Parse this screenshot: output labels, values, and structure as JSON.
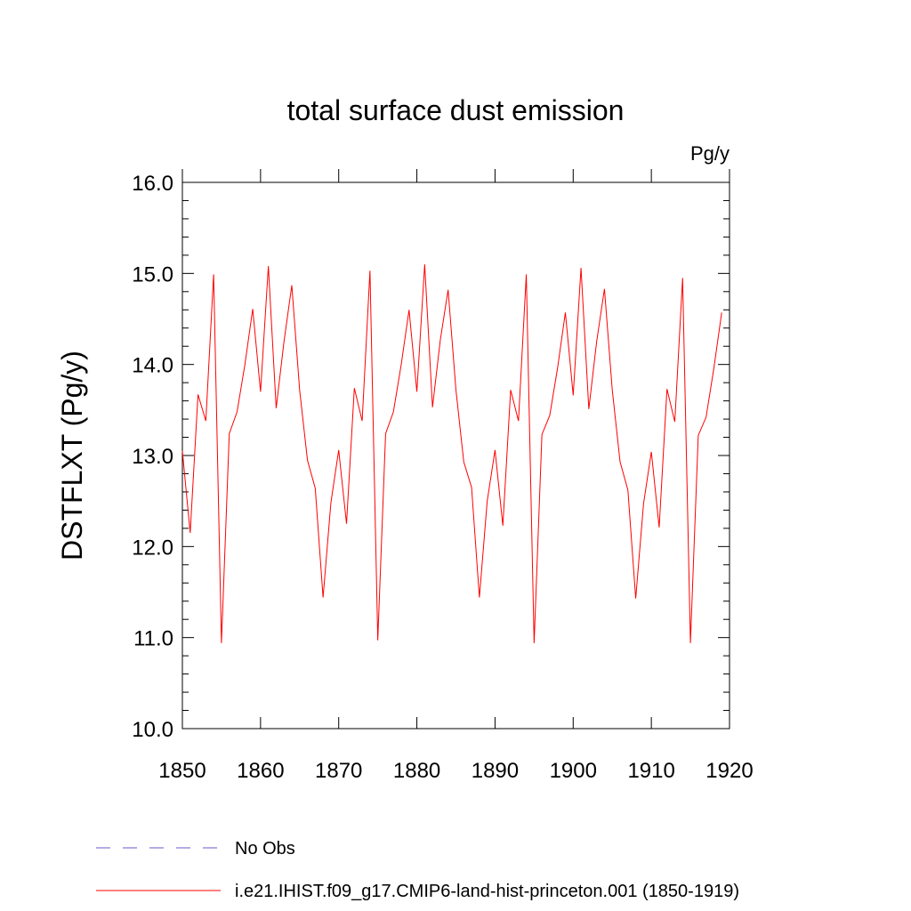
{
  "chart_data": {
    "type": "line",
    "title": "total surface dust emission",
    "units_label": "Pg/y",
    "ylabel": "DSTFLXT  (Pg/y)",
    "xlabel": "",
    "xlim": [
      1850,
      1920
    ],
    "ylim": [
      10.0,
      16.0
    ],
    "x_ticks": [
      1850,
      1860,
      1870,
      1880,
      1890,
      1900,
      1910,
      1920
    ],
    "x_tick_labels": [
      "1850",
      "1860",
      "1870",
      "1880",
      "1890",
      "1900",
      "1910",
      "1920"
    ],
    "y_ticks": [
      10.0,
      11.0,
      12.0,
      13.0,
      14.0,
      15.0,
      16.0
    ],
    "y_tick_labels": [
      "10.0",
      "11.0",
      "12.0",
      "13.0",
      "14.0",
      "15.0",
      "16.0"
    ],
    "grid": false,
    "legend_position": "bottom-left",
    "series": [
      {
        "name": "i.e21.IHIST.f09_g17.CMIP6-land-hist-princeton.001 (1850-1919)",
        "color": "#ff0000",
        "style": "solid",
        "x": [
          1850,
          1851,
          1852,
          1853,
          1854,
          1855,
          1856,
          1857,
          1858,
          1859,
          1860,
          1861,
          1862,
          1863,
          1864,
          1865,
          1866,
          1867,
          1868,
          1869,
          1870,
          1871,
          1872,
          1873,
          1874,
          1875,
          1876,
          1877,
          1878,
          1879,
          1880,
          1881,
          1882,
          1883,
          1884,
          1885,
          1886,
          1887,
          1888,
          1889,
          1890,
          1891,
          1892,
          1893,
          1894,
          1895,
          1896,
          1897,
          1898,
          1899,
          1900,
          1901,
          1902,
          1903,
          1904,
          1905,
          1906,
          1907,
          1908,
          1909,
          1910,
          1911,
          1912,
          1913,
          1914,
          1915,
          1916,
          1917,
          1918,
          1919
        ],
        "values": [
          13.05,
          12.15,
          13.67,
          13.38,
          14.99,
          10.94,
          13.24,
          13.48,
          14.0,
          14.61,
          13.7,
          15.08,
          13.52,
          14.25,
          14.87,
          13.72,
          12.95,
          12.64,
          11.44,
          12.48,
          13.06,
          12.25,
          13.74,
          13.38,
          15.03,
          10.97,
          13.24,
          13.48,
          14.0,
          14.6,
          13.7,
          15.1,
          13.53,
          14.27,
          14.82,
          13.72,
          12.93,
          12.65,
          11.44,
          12.5,
          13.06,
          12.23,
          13.72,
          13.38,
          14.99,
          10.94,
          13.23,
          13.44,
          13.96,
          14.57,
          13.66,
          15.06,
          13.51,
          14.25,
          14.83,
          13.72,
          12.93,
          12.62,
          11.43,
          12.47,
          13.04,
          12.21,
          13.73,
          13.37,
          14.95,
          10.94,
          13.22,
          13.42,
          13.96,
          14.57
        ]
      },
      {
        "name": "No Obs",
        "color": "#6a5acd",
        "style": "dashed",
        "x": [],
        "values": []
      }
    ]
  }
}
